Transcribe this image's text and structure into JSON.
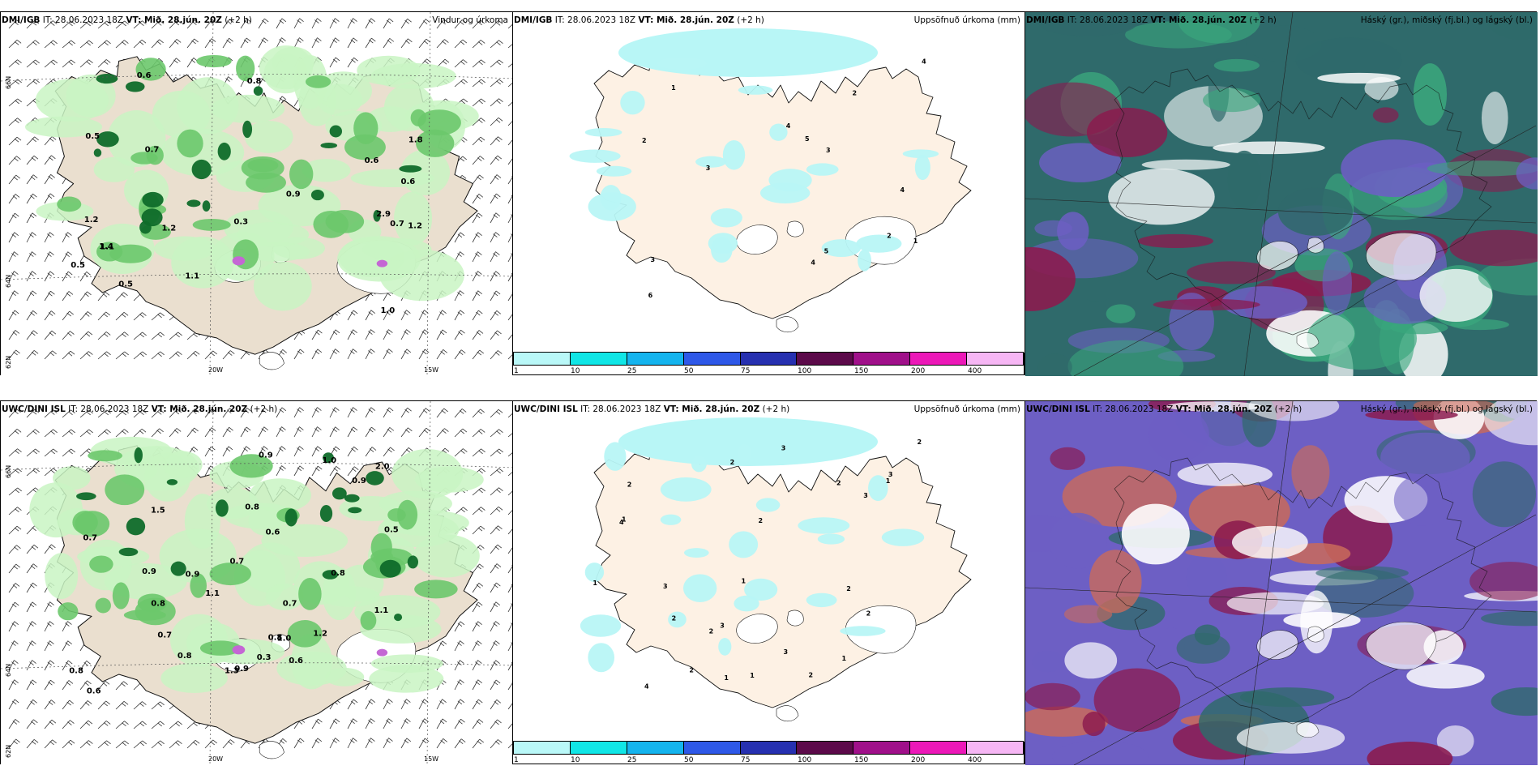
{
  "colors": {
    "land": "#eadfcf",
    "land_light": "#fdf1e4",
    "ice": "#ffffff",
    "precip_light": "#c9f5c3",
    "precip_mid": "#6cc86b",
    "precip_dark": "#0f6b2a",
    "precip_purple": "#c467d4",
    "accum_cyan": "#b8f6f6",
    "cloud_high": "#2f6a6b",
    "cloud_mid": "#6d5fc4",
    "cloud_low": "#8b1a4e"
  },
  "panels": {
    "dmi_wind": {
      "model": "DMI/IGB",
      "it": "IT: 28.06.2023 18Z",
      "vt": "VT: Mið. 28.jún. 20Z",
      "lead": "(+2 h)",
      "title": "Vindur og úrkoma"
    },
    "dmi_acc": {
      "model": "DMI/IGB",
      "it": "IT: 28.06.2023 18Z",
      "vt": "VT: Mið. 28.jún. 20Z",
      "lead": "(+2 h)",
      "title": "Uppsöfnuð úrkoma (mm)"
    },
    "dmi_cloud": {
      "model": "DMI/IGB",
      "it": "IT: 28.06.2023 18Z",
      "vt": "VT: Mið. 28.jún. 20Z",
      "lead": "(+2 h)",
      "title": "Háský (gr.), miðský (fj.bl.) og lágský (bl.)"
    },
    "uwc_wind": {
      "model": "UWC/DINI ISL",
      "it": "IT: 28.06.2023 18Z",
      "vt": "VT: Mið. 28.jún. 20Z",
      "lead": "(+2 h)",
      "title": ""
    },
    "uwc_acc": {
      "model": "UWC/DINI ISL",
      "it": "IT: 28.06.2023 18Z",
      "vt": "VT: Mið. 28.jún. 20Z",
      "lead": "(+2 h)",
      "title": "Uppsöfnuð úrkoma (mm)"
    },
    "uwc_cloud": {
      "model": "UWC/DINI ISL",
      "it": "IT: 28.06.2023 18Z",
      "vt": "VT: Mið. 28.jún. 20Z",
      "lead": "(+2 h)",
      "title": "Háský (gr.), miðský (fj.bl.) og lágský (bl.)"
    }
  },
  "graticule": {
    "lat_66": "66N",
    "lat_64": "64N",
    "lat_62": "62N",
    "lon_20": "20W",
    "lon_15": "15W"
  },
  "colorbar": {
    "ticks": [
      "1",
      "10",
      "25",
      "50",
      "75",
      "100",
      "150",
      "200",
      "400"
    ],
    "colors": [
      "#b9f8f8",
      "#10e6e6",
      "#14b4ee",
      "#2e58e8",
      "#2630b0",
      "#5c0a4a",
      "#a0108a",
      "#ec18b8",
      "#f6b6f4"
    ]
  },
  "dmi_wind_values": [
    "0.7",
    "1.1",
    "0.5",
    "1.1",
    "0.7",
    "0.6",
    "1.0",
    "1.2",
    "0.5",
    "0.6",
    "0.8",
    "0.5",
    "0.9",
    "1.8",
    "2.9",
    "0.3",
    "1.2",
    "1.2",
    "1.4",
    "0.6"
  ],
  "uwc_wind_values": [
    "0.9",
    "0.7",
    "0.6",
    "0.8",
    "0.9",
    "0.7",
    "0.9",
    "2.0",
    "1.2",
    "1.0",
    "1.1",
    "0.9",
    "0.7",
    "1.5",
    "0.8",
    "0.9",
    "0.8",
    "0.5",
    "0.6",
    "0.8",
    "1.0",
    "1.1",
    "0.6",
    "0.8",
    "0.7",
    "0.3",
    "0.8",
    "1.3"
  ],
  "dmi_acc_values": [
    "4",
    "5",
    "2",
    "3",
    "4",
    "2",
    "4",
    "3",
    "3",
    "6",
    "2",
    "1",
    "1",
    "5",
    "4"
  ],
  "uwc_acc_values": [
    "2",
    "3",
    "3",
    "4",
    "2",
    "2",
    "2",
    "3",
    "3",
    "4",
    "2",
    "2",
    "1",
    "1",
    "1",
    "2",
    "3",
    "1",
    "1",
    "2",
    "3",
    "2",
    "1",
    "2",
    "2",
    "1"
  ]
}
